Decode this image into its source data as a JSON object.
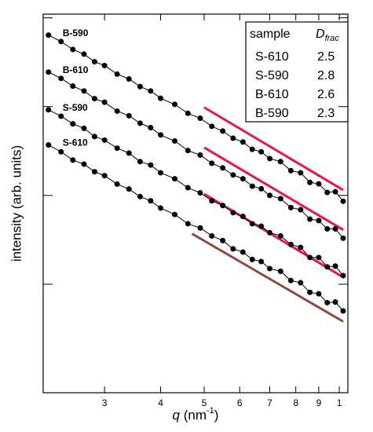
{
  "chart_data": {
    "type": "scatter",
    "x_label": {
      "symbol": "q",
      "unit": " (nm",
      "power": "-1",
      "close": ")"
    },
    "y_label": "intensity (arb. units)",
    "log_x": true,
    "log_y": true,
    "xlim": [
      2.19,
      10.45
    ],
    "xticks": [
      3,
      4,
      5,
      6,
      7,
      8,
      9,
      {
        "value": 10,
        "label": "1"
      }
    ],
    "ylim": [
      0.06,
      1100
    ],
    "yticks": [
      1,
      10,
      100,
      1000
    ],
    "x": [
      2.25,
      2.4,
      2.55,
      2.7,
      2.85,
      3.0,
      3.2,
      3.4,
      3.6,
      3.8,
      4.0,
      4.3,
      4.6,
      4.9,
      5.2,
      5.5,
      5.8,
      6.1,
      6.4,
      6.7,
      7.0,
      7.4,
      7.8,
      8.2,
      8.6,
      9.0,
      9.4,
      9.8,
      10.2
    ],
    "series": [
      {
        "name": "B-590",
        "color": "#000000",
        "values": [
          638,
          540,
          440,
          390,
          320,
          290,
          232,
          205,
          168,
          150,
          124,
          106,
          84,
          74,
          60,
          53,
          44,
          40,
          33,
          31,
          26,
          24,
          19,
          18,
          14,
          13.5,
          10.8,
          11,
          8.6
        ]
      },
      {
        "name": "B-610",
        "color": "#000000",
        "values": [
          245,
          208,
          170,
          150,
          123,
          112,
          89,
          79,
          65,
          58,
          48,
          41,
          32,
          28.5,
          23,
          20.4,
          17,
          15.4,
          12.7,
          11.9,
          10,
          9.2,
          7.3,
          6.9,
          5.4,
          5.2,
          4.2,
          4.2,
          3.3
        ]
      },
      {
        "name": "S-590",
        "color": "#000000",
        "values": [
          92,
          78,
          64,
          57,
          46,
          42,
          34,
          30,
          24,
          22,
          18,
          15.4,
          12.2,
          10.7,
          8.7,
          7.7,
          6.4,
          5.8,
          4.8,
          4.5,
          3.8,
          3.5,
          2.8,
          2.6,
          2.0,
          2.0,
          1.57,
          1.6,
          1.25
        ]
      },
      {
        "name": "S-610",
        "color": "#000000",
        "values": [
          37,
          31,
          25,
          22.5,
          18.5,
          16.7,
          13.4,
          11.8,
          9.7,
          8.7,
          7.2,
          6.1,
          4.8,
          4.3,
          3.5,
          3.1,
          2.5,
          2.3,
          1.9,
          1.8,
          1.5,
          1.4,
          1.1,
          1.04,
          0.81,
          0.78,
          0.62,
          0.63,
          0.5
        ]
      }
    ],
    "fits": [
      {
        "color": "#e8174a",
        "x": [
          5,
          10.2
        ],
        "values": [
          98,
          11.5
        ]
      },
      {
        "color": "#e8174a",
        "x": [
          5,
          10.2
        ],
        "values": [
          34.6,
          4.1
        ]
      },
      {
        "color": "#e8174a",
        "x": [
          5,
          10.2
        ],
        "values": [
          10.4,
          1.2
        ]
      },
      {
        "color": "#8b4a3a",
        "x": [
          4.7,
          10.2
        ],
        "values": [
          3.7,
          0.38
        ]
      }
    ],
    "table": {
      "header": {
        "sample": "sample",
        "d": "D",
        "d_sub": "frac"
      },
      "rows": [
        [
          "S-610",
          2.5
        ],
        [
          "S-590",
          2.8
        ],
        [
          "B-610",
          2.6
        ],
        [
          "B-590",
          2.3
        ]
      ]
    }
  }
}
